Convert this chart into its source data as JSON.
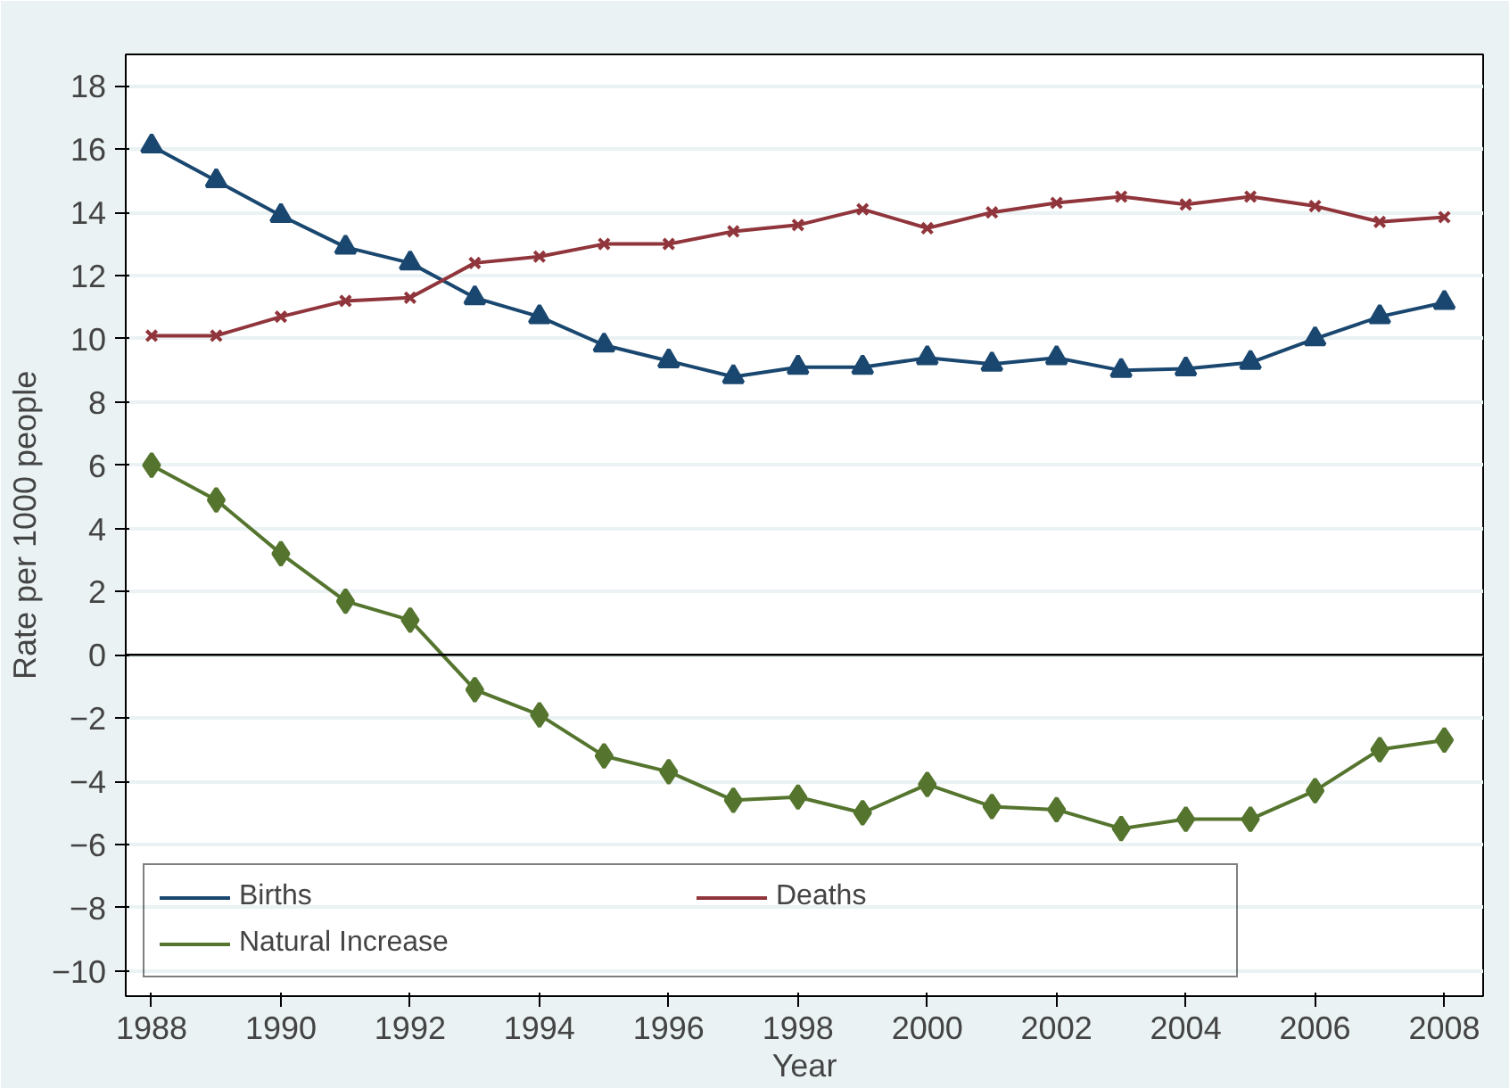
{
  "chart_data": {
    "type": "line",
    "xlabel": "Year",
    "ylabel": "Rate per 1000 people",
    "x": [
      1988,
      1989,
      1990,
      1991,
      1992,
      1993,
      1994,
      1995,
      1996,
      1997,
      1998,
      1999,
      2000,
      2001,
      2002,
      2003,
      2004,
      2005,
      2006,
      2007,
      2008
    ],
    "series": [
      {
        "name": "Births",
        "color": "#1a476f",
        "marker": "triangle",
        "values": [
          16.1,
          15.0,
          13.9,
          12.9,
          12.4,
          11.3,
          10.7,
          9.8,
          9.3,
          8.8,
          9.1,
          9.1,
          9.4,
          9.2,
          9.4,
          9.0,
          9.05,
          9.25,
          10.0,
          10.7,
          11.15
        ]
      },
      {
        "name": "Deaths",
        "color": "#90353b",
        "marker": "cross",
        "values": [
          10.1,
          10.1,
          10.7,
          11.2,
          11.3,
          12.4,
          12.6,
          13.0,
          13.0,
          13.4,
          13.6,
          14.1,
          13.5,
          14.0,
          14.3,
          14.5,
          14.25,
          14.5,
          14.2,
          13.7,
          13.85
        ]
      },
      {
        "name": "Natural Increase",
        "color": "#55752f",
        "marker": "diamond",
        "values": [
          6.0,
          4.9,
          3.2,
          1.7,
          1.1,
          -1.1,
          -1.9,
          -3.2,
          -3.7,
          -4.6,
          -4.5,
          -5.0,
          -4.1,
          -4.8,
          -4.9,
          -5.5,
          -5.2,
          -5.2,
          -4.3,
          -3.0,
          -2.7
        ]
      }
    ],
    "xlim": [
      1987.6,
      2008.6
    ],
    "xticks": [
      1988,
      1990,
      1992,
      1994,
      1996,
      1998,
      2000,
      2002,
      2004,
      2006,
      2008
    ],
    "ylim": [
      -10.8,
      19
    ],
    "yticks": [
      -10,
      -8,
      -6,
      -4,
      -2,
      0,
      2,
      4,
      6,
      8,
      10,
      12,
      14,
      16,
      18
    ],
    "ref_lines": [
      {
        "axis": "y",
        "value": 0,
        "color": "#000000"
      }
    ],
    "grid": "y",
    "legend": "bottom left"
  }
}
